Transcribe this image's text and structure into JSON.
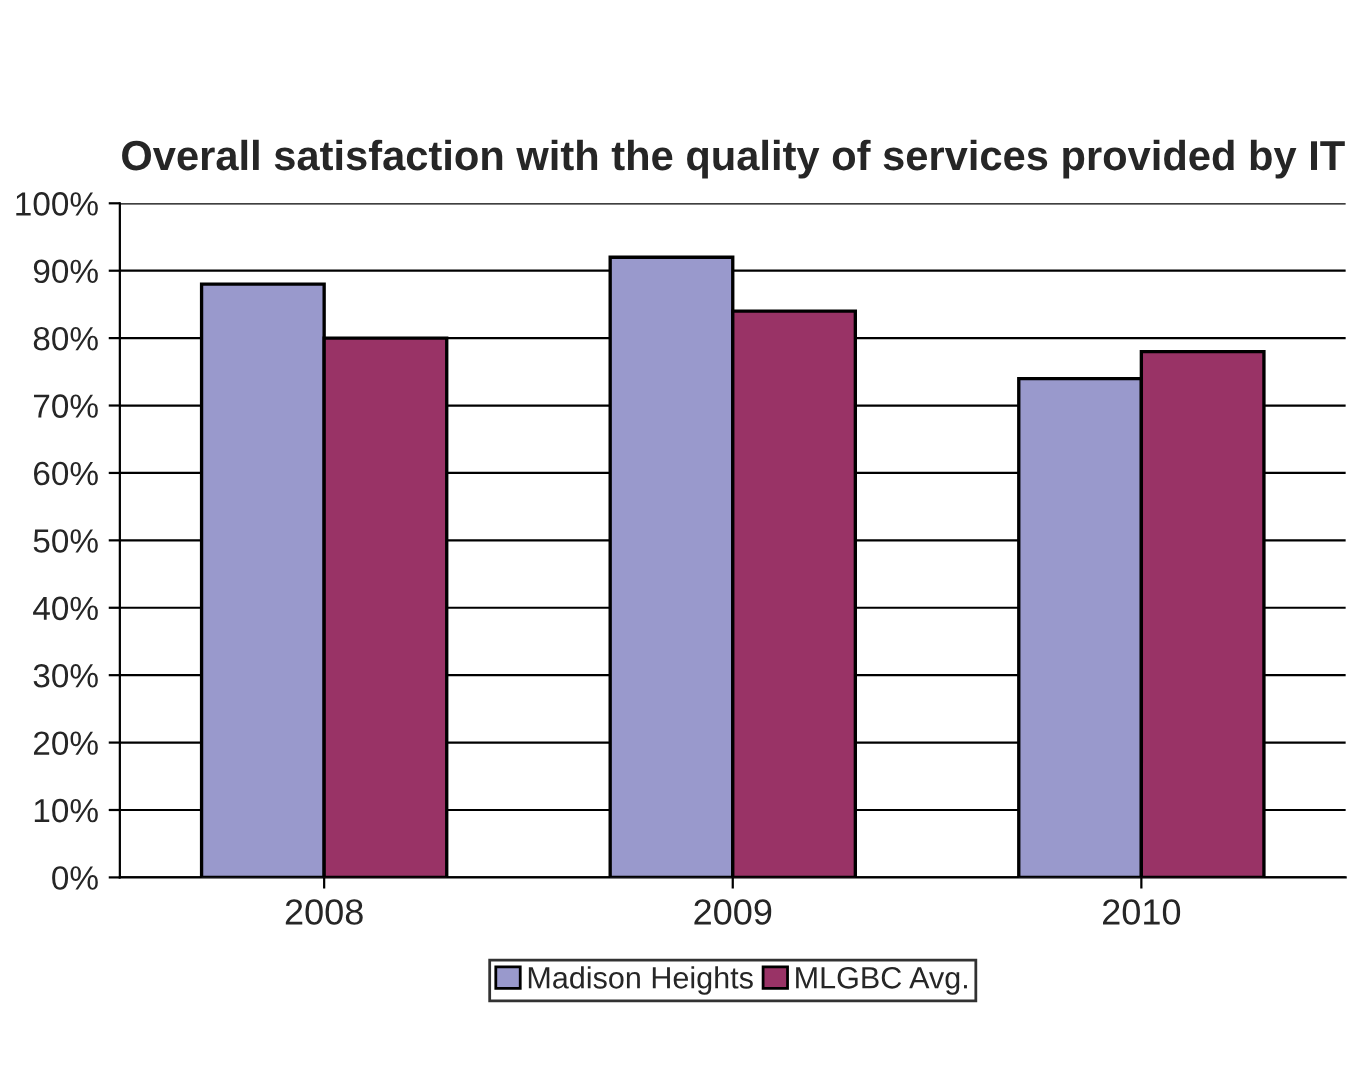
{
  "chart_data": {
    "type": "bar",
    "title": "Overall satisfaction with the quality of services provided by IT",
    "categories": [
      "2008",
      "2009",
      "2010"
    ],
    "series": [
      {
        "name": "Madison Heights",
        "color": "#9999cc",
        "values": [
          88,
          92,
          74
        ]
      },
      {
        "name": "MLGBC Avg.",
        "color": "#993366",
        "values": [
          80,
          84,
          78
        ]
      }
    ],
    "ylim": [
      0,
      100
    ],
    "yticks": [
      {
        "value": 0,
        "label": "0%"
      },
      {
        "value": 10,
        "label": "10%"
      },
      {
        "value": 20,
        "label": "20%"
      },
      {
        "value": 30,
        "label": "30%"
      },
      {
        "value": 40,
        "label": "40%"
      },
      {
        "value": 50,
        "label": "50%"
      },
      {
        "value": 60,
        "label": "60%"
      },
      {
        "value": 70,
        "label": "70%"
      },
      {
        "value": 80,
        "label": "80%"
      },
      {
        "value": 90,
        "label": "90%"
      },
      {
        "value": 100,
        "label": "100%"
      }
    ],
    "grid": "y",
    "legend": "bottom"
  }
}
